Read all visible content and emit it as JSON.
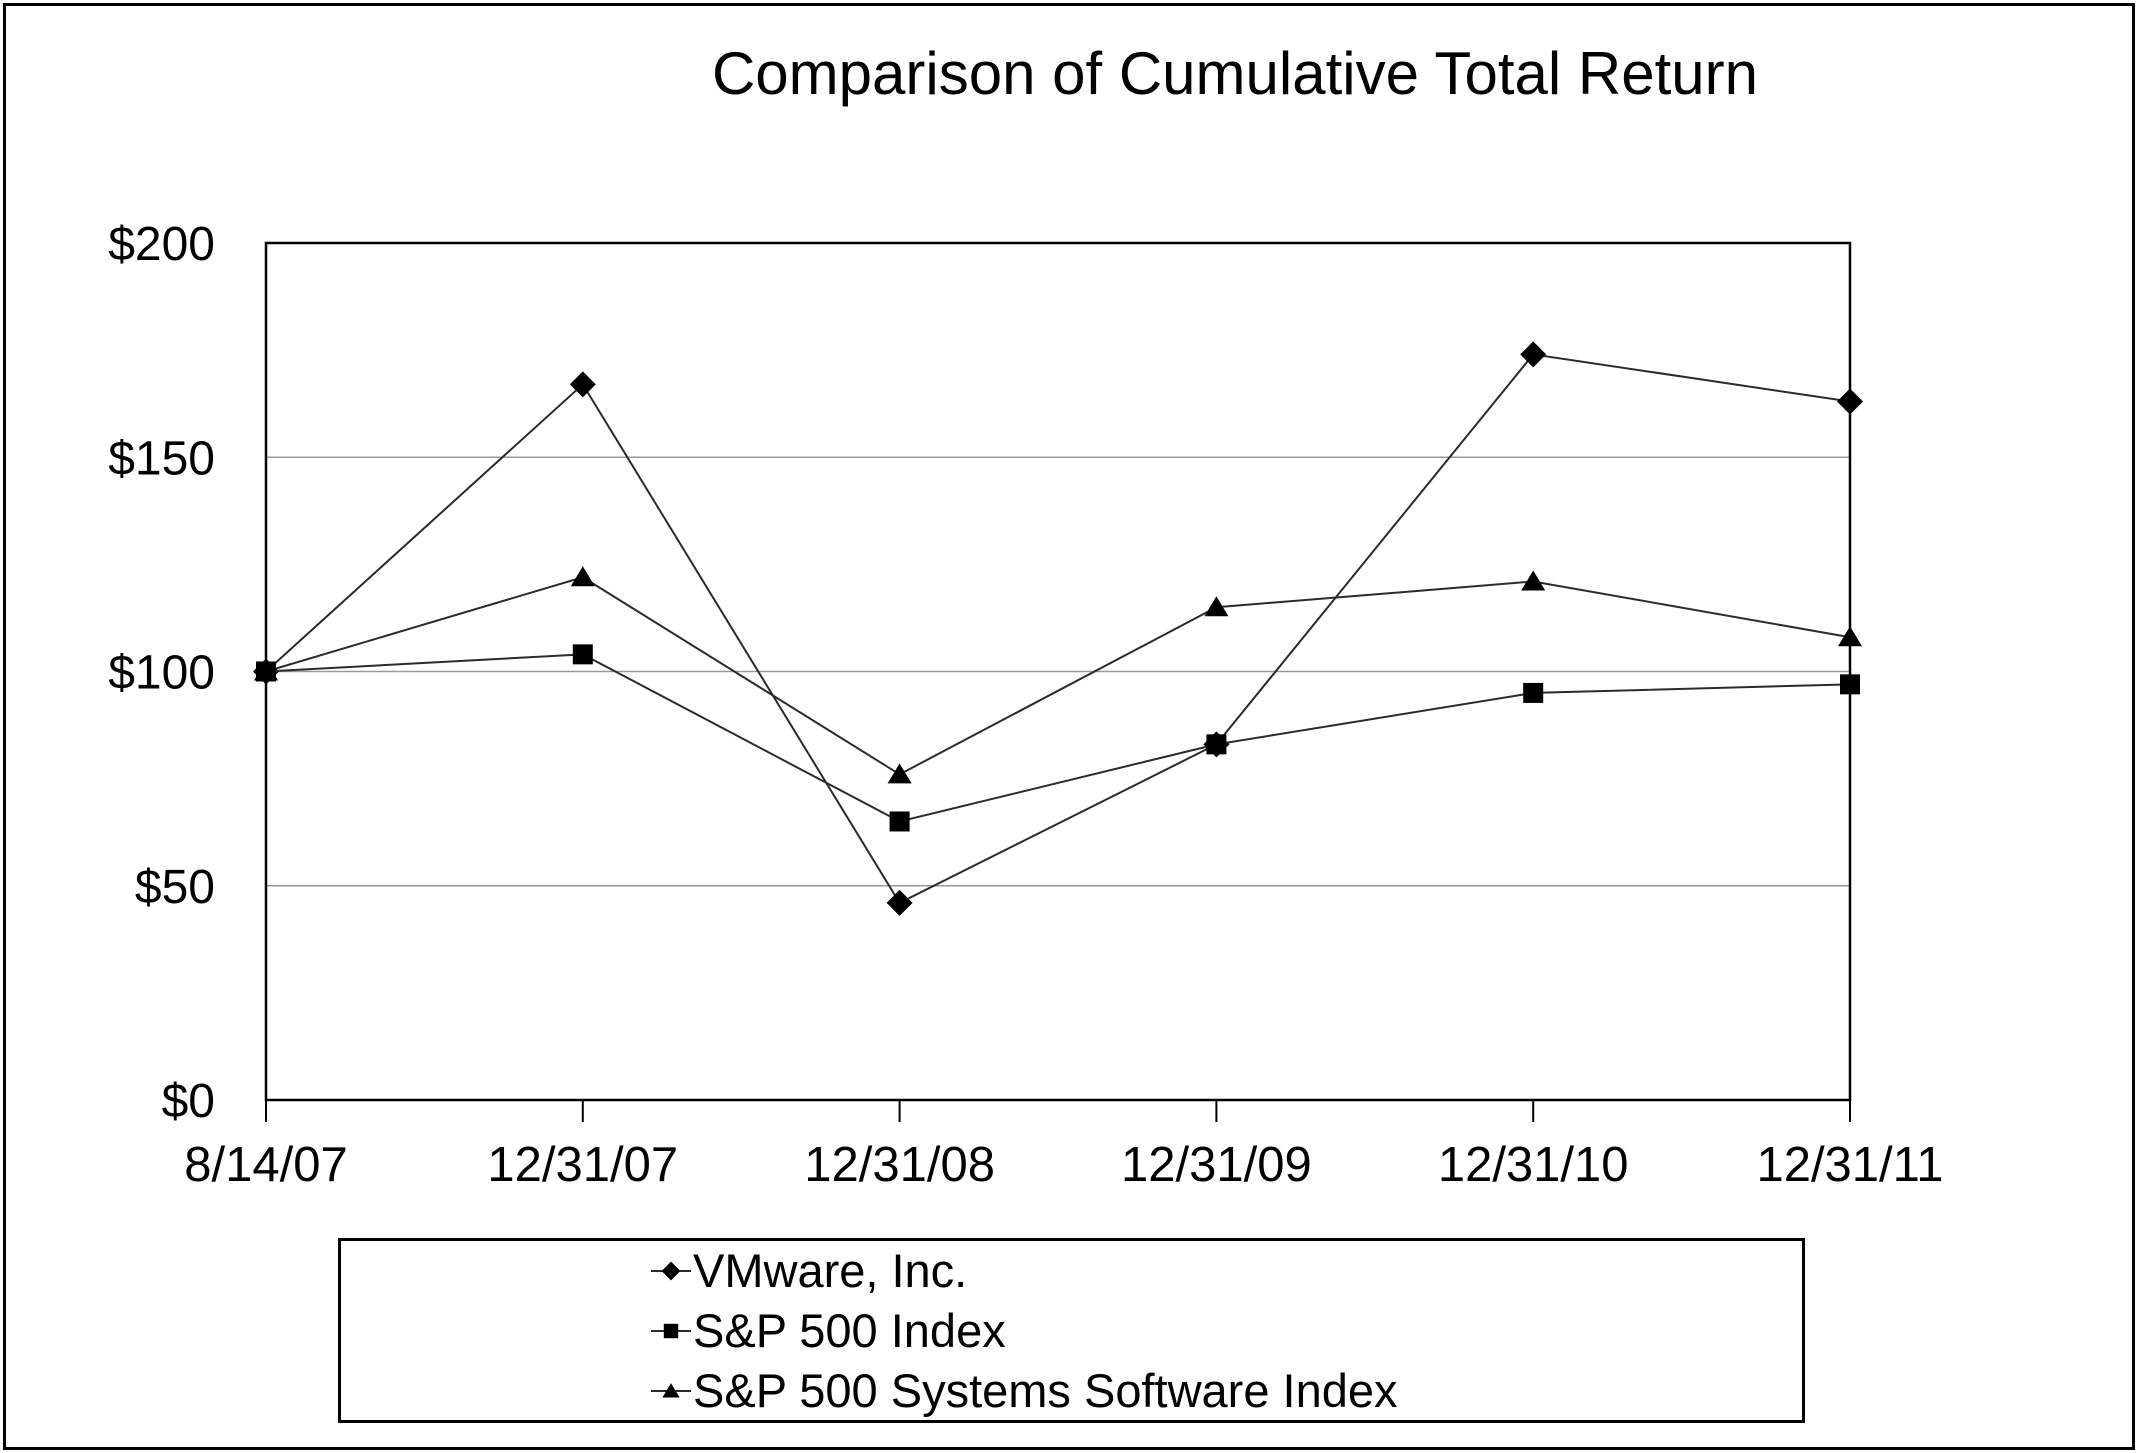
{
  "page": {
    "background": "#ffffff",
    "border_color": "#000000"
  },
  "chart_data": {
    "type": "line",
    "title": "Comparison of Cumulative Total Return",
    "categories": [
      "8/14/07",
      "12/31/07",
      "12/31/08",
      "12/31/09",
      "12/31/10",
      "12/31/11"
    ],
    "series": [
      {
        "name": "VMware, Inc.",
        "marker": "diamond",
        "values": [
          100,
          167,
          46,
          83,
          174,
          163
        ]
      },
      {
        "name": "S&P 500 Index",
        "marker": "square",
        "values": [
          100,
          104,
          65,
          83,
          95,
          97
        ]
      },
      {
        "name": "S&P 500 Systems Software Index",
        "marker": "triangle",
        "values": [
          100,
          122,
          76,
          115,
          121,
          108
        ]
      }
    ],
    "xlabel": "",
    "ylabel": "",
    "ylim": [
      0,
      200
    ],
    "y_ticks": [
      {
        "label": "$0",
        "value": 0
      },
      {
        "label": "$50",
        "value": 50
      },
      {
        "label": "$100",
        "value": 100
      },
      {
        "label": "$150",
        "value": 150
      },
      {
        "label": "$200",
        "value": 200
      }
    ],
    "grid": "horizontal",
    "legend_position": "bottom",
    "colors": {
      "series_line": "#2b2b2b",
      "marker_fill": "#000000",
      "gridline": "#999999",
      "axis": "#000000",
      "text": "#000000"
    }
  }
}
